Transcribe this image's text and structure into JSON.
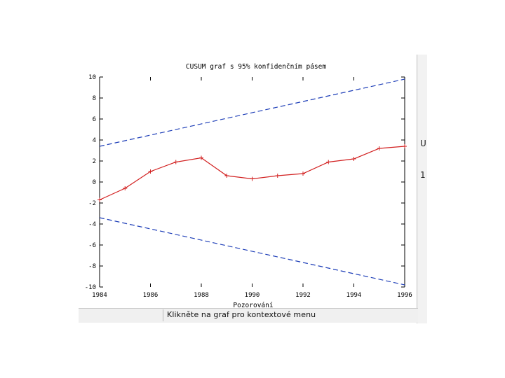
{
  "status_text": "Klikněte na graf pro kontextové menu",
  "right_panel": {
    "fragment_1": "U",
    "fragment_2": "1"
  },
  "colors": {
    "cusum": "#d22020",
    "bounds": "#1f3fb8",
    "axis": "#000000",
    "background": "#ffffff"
  },
  "chart_data": {
    "type": "line",
    "title": "CUSUM graf s 95% konfidenčním pásem",
    "xlabel": "Pozorování",
    "ylabel": "",
    "xlim": [
      1984,
      1996
    ],
    "ylim": [
      -10,
      10
    ],
    "x_ticks": [
      1984,
      1986,
      1988,
      1990,
      1992,
      1994,
      1996
    ],
    "y_ticks": [
      10,
      8,
      6,
      4,
      2,
      0,
      -2,
      -4,
      -6,
      -8,
      -10
    ],
    "legend": "none",
    "grid": false,
    "series": [
      {
        "x": [
          1984,
          1985,
          1986,
          1987,
          1988,
          1989,
          1990,
          1991,
          1992,
          1993,
          1994,
          1995,
          1996
        ],
        "values": [
          -1.7,
          -0.6,
          1.0,
          1.9,
          2.3,
          0.6,
          0.3,
          0.6,
          0.8,
          1.9,
          2.2,
          3.2,
          3.4
        ],
        "color": "#d22020",
        "style": "solid",
        "markers": "plus"
      },
      {
        "x": [
          1984,
          1996
        ],
        "values": [
          3.4,
          9.8
        ],
        "color": "#1f3fb8",
        "style": "dashed"
      },
      {
        "x": [
          1984,
          1996
        ],
        "values": [
          -3.4,
          -9.8
        ],
        "color": "#1f3fb8",
        "style": "dashed"
      }
    ]
  }
}
